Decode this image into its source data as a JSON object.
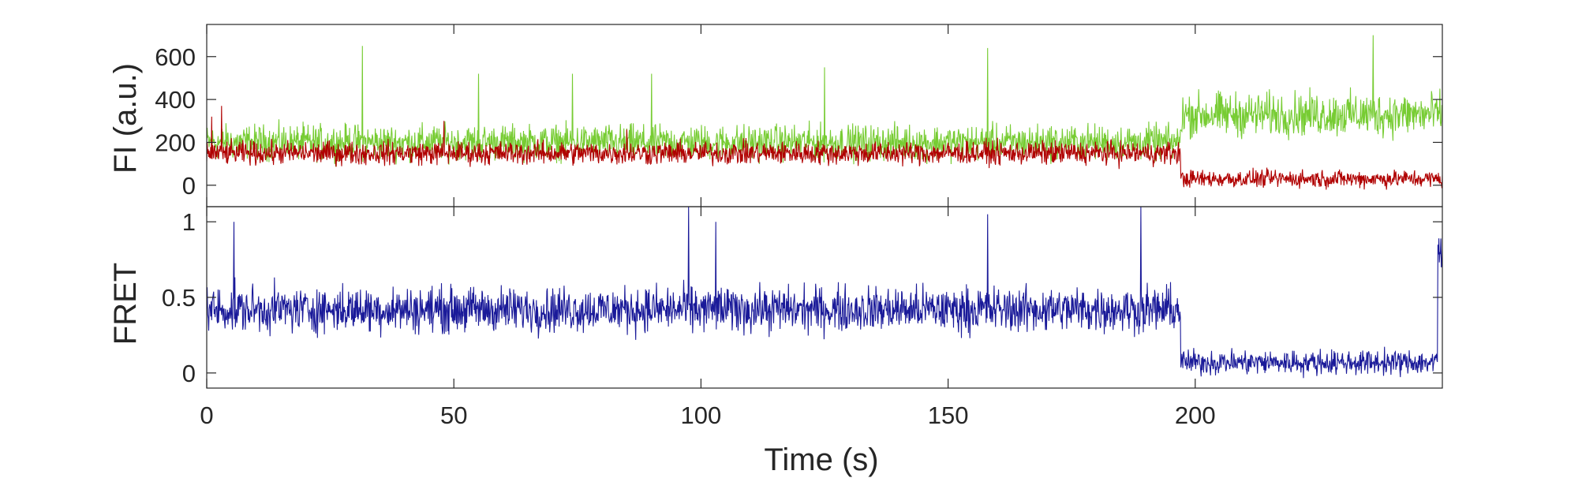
{
  "chart_data": [
    {
      "panel": "top",
      "type": "line",
      "ylabel": "FI (a.u.)",
      "xlim": [
        0,
        250
      ],
      "ylim": [
        -100,
        750
      ],
      "yticks": [
        0,
        200,
        400,
        600
      ],
      "ytick_labels": [
        "0",
        "200",
        "400",
        "600"
      ],
      "series": [
        {
          "color": "#77cc33",
          "segments": [
            {
              "x_start": 0,
              "x_end": 197,
              "mean": 200,
              "amplitude": 120
            },
            {
              "x_start": 197,
              "x_end": 250,
              "mean": 330,
              "amplitude": 150
            }
          ],
          "peaks": [
            [
              31.5,
              650
            ],
            [
              158,
              640
            ],
            [
              236,
              700
            ],
            [
              55,
              520
            ],
            [
              125,
              550
            ],
            [
              90,
              520
            ],
            [
              74,
              520
            ]
          ]
        },
        {
          "color": "#b00000",
          "segments": [
            {
              "x_start": 0,
              "x_end": 197,
              "mean": 150,
              "amplitude": 80
            },
            {
              "x_start": 197,
              "x_end": 250,
              "mean": 30,
              "amplitude": 60
            }
          ],
          "peaks": [
            [
              1,
              320
            ],
            [
              3,
              370
            ],
            [
              48,
              300
            ],
            [
              85,
              260
            ]
          ]
        }
      ]
    },
    {
      "panel": "bottom",
      "type": "line",
      "ylabel": "FRET",
      "xlabel": "Time (s)",
      "xlim": [
        0,
        250
      ],
      "ylim": [
        -0.1,
        1.1
      ],
      "yticks": [
        0,
        0.5,
        1
      ],
      "ytick_labels": [
        "0",
        "0.5",
        "1"
      ],
      "xticks": [
        0,
        50,
        100,
        150,
        200
      ],
      "xtick_labels": [
        "0",
        "50",
        "100",
        "150",
        "200"
      ],
      "series": [
        {
          "color": "#1a1a99",
          "segments": [
            {
              "x_start": 0,
              "x_end": 197,
              "mean": 0.42,
              "amplitude": 0.22
            },
            {
              "x_start": 197,
              "x_end": 249,
              "mean": 0.07,
              "amplitude": 0.12
            },
            {
              "x_start": 249,
              "x_end": 250,
              "mean": 0.8,
              "amplitude": 0.3
            }
          ],
          "peaks": [
            [
              97.5,
              1.1
            ],
            [
              189,
              1.1
            ],
            [
              158,
              1.05
            ],
            [
              5.5,
              1.0
            ],
            [
              103,
              1.0
            ]
          ]
        }
      ]
    }
  ]
}
